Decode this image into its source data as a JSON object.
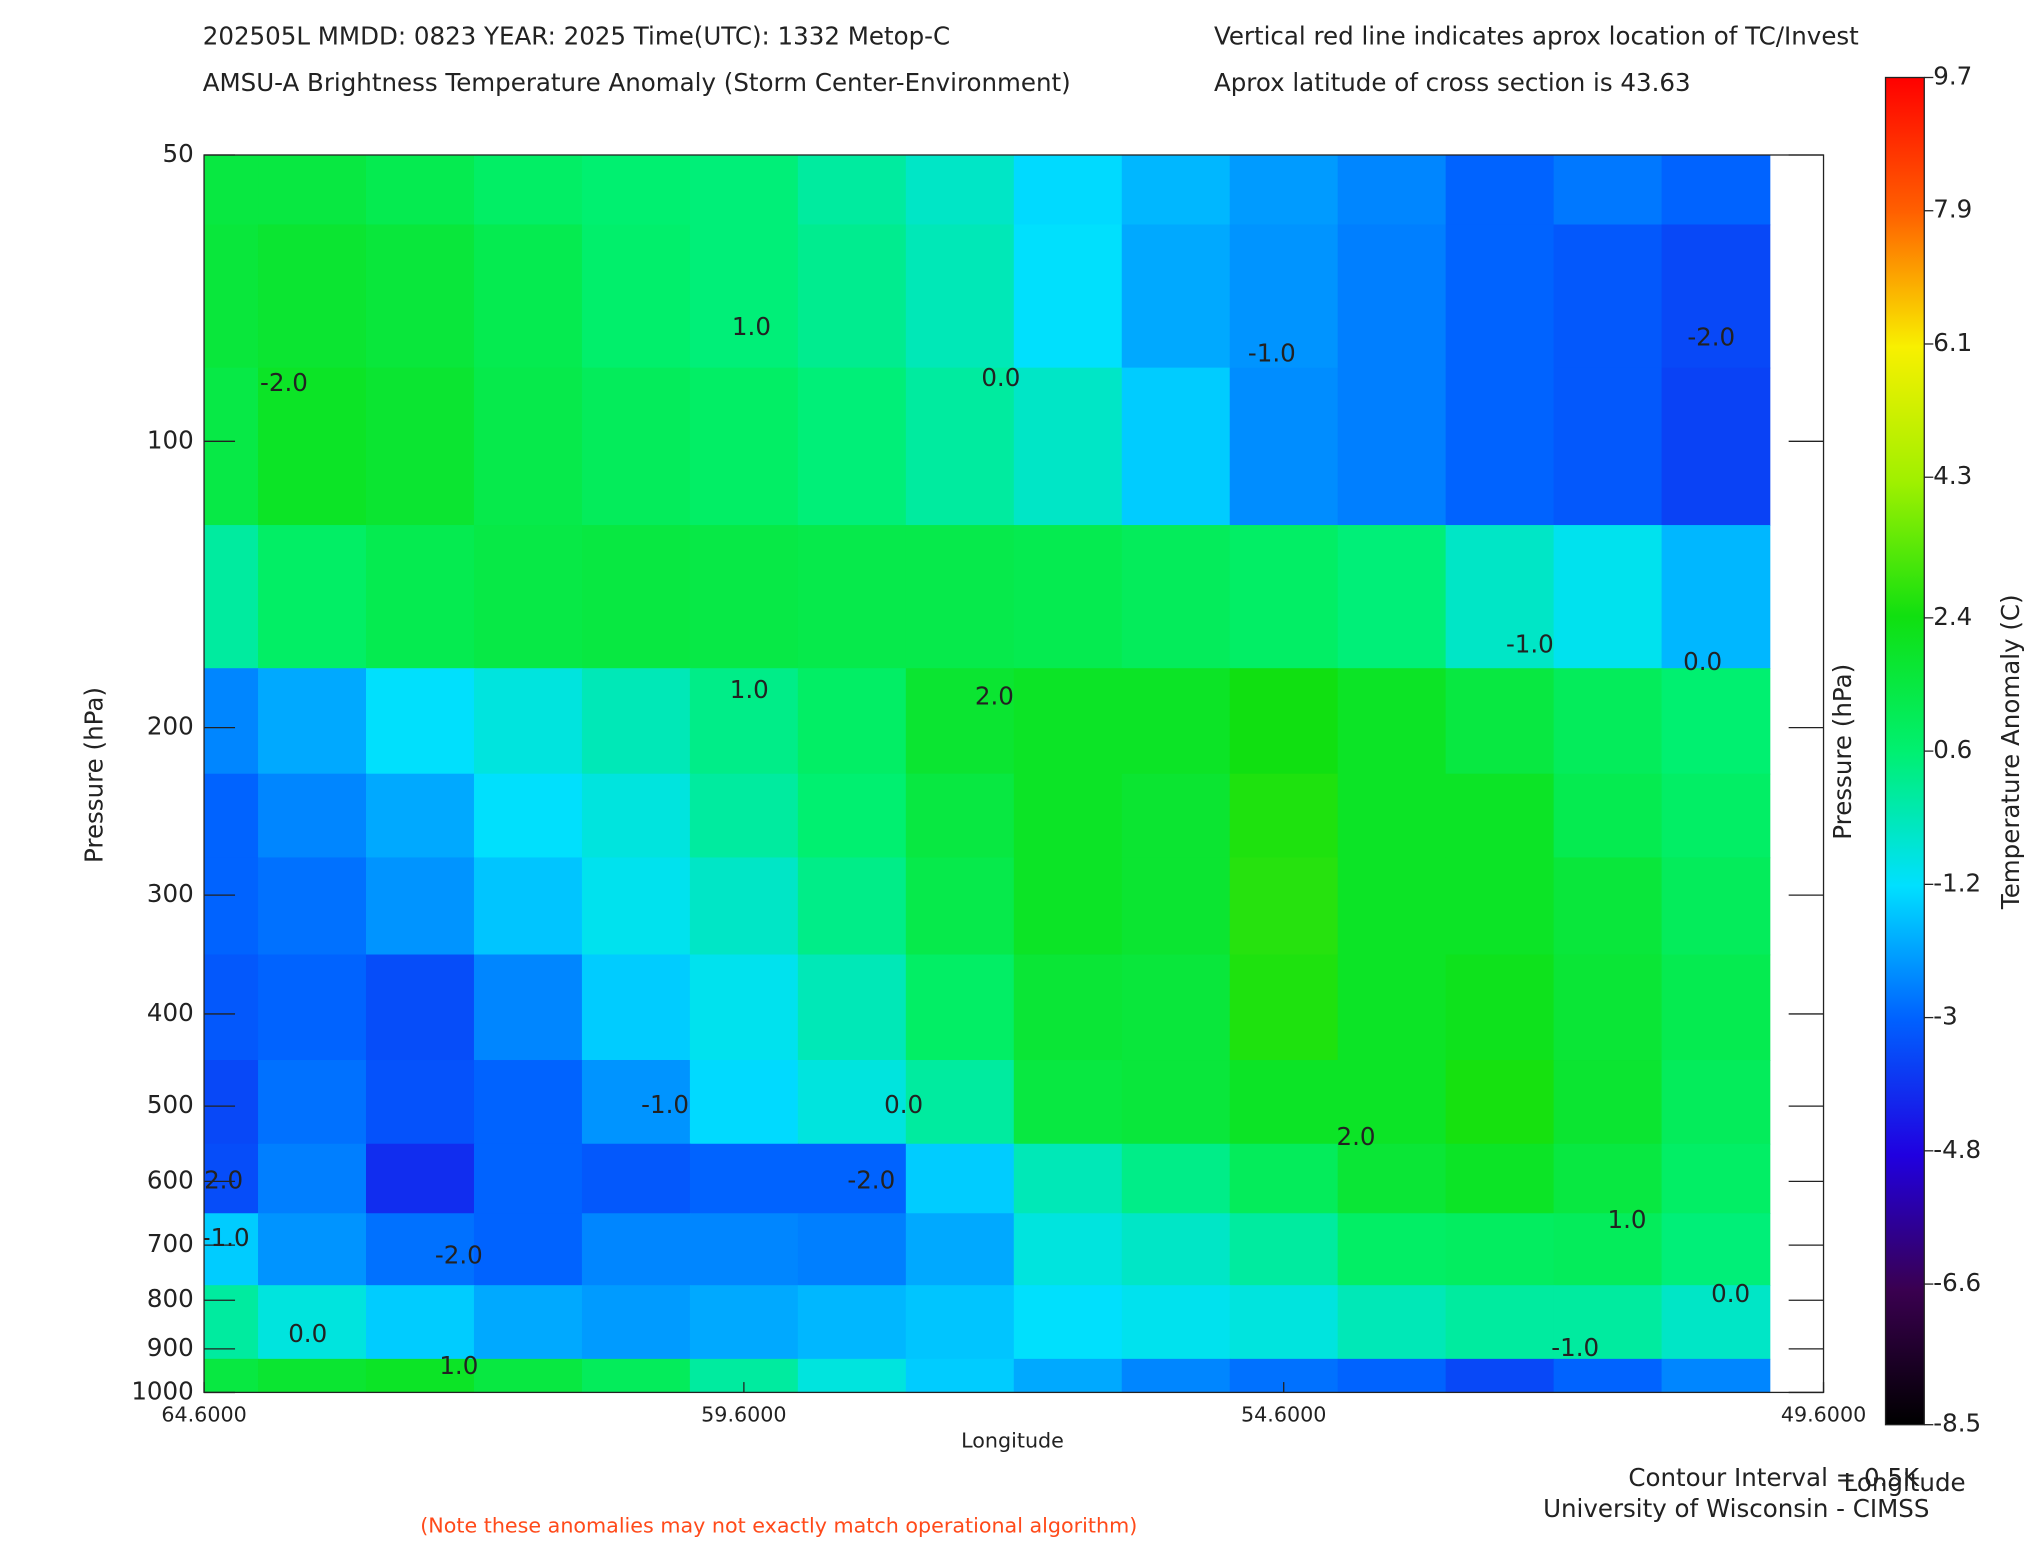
{
  "chart_data": {
    "type": "contour",
    "title": "202505L  MMDD: 0823 YEAR: 2025 Time(UTC): 1332 Metop-C",
    "subtitle": "AMSU-A Brightness Temperature Anomaly (Storm Center-Environment)",
    "note_right_1": "Vertical red line indicates aprox location of TC/Invest",
    "note_right_2": "Aprox latitude of cross section is 43.63",
    "xlabel": "Longitude",
    "ylabel": "Pressure (hPa)",
    "y2label": "Pressure (hPa)",
    "colorbar_label": "Temperature Anomaly (C)",
    "contour_interval": "Contour Interval = 0.5K",
    "corner_label": "Longitude",
    "credit": "University of Wisconsin - CIMSS",
    "footnote": "(Note these anomalies may not exactly match operational algorithm)",
    "xlim": [
      64.6,
      49.6
    ],
    "xticks": [
      {
        "value": 64.6,
        "label": "64.6000"
      },
      {
        "value": 59.6,
        "label": "59.6000"
      },
      {
        "value": 54.6,
        "label": "54.6000"
      },
      {
        "value": 49.6,
        "label": "49.6000"
      }
    ],
    "ylim": [
      50,
      1000
    ],
    "yscale": "log",
    "yinverted": true,
    "yticks": [
      50,
      100,
      200,
      300,
      400,
      500,
      600,
      700,
      800,
      900,
      1000
    ],
    "x": [
      64.6,
      63.6,
      62.6,
      61.6,
      60.6,
      59.6,
      58.6,
      57.6,
      56.6,
      55.6,
      54.6,
      53.6,
      52.6,
      51.6,
      50.6
    ],
    "y": [
      50,
      70,
      100,
      150,
      200,
      250,
      300,
      400,
      500,
      600,
      700,
      850,
      1000
    ],
    "z": [
      [
        1.5,
        1.5,
        1.2,
        0.8,
        0.6,
        0.5,
        0.0,
        -0.5,
        -1.3,
        -1.8,
        -2.2,
        -2.5,
        -3.0,
        -2.7,
        -3.0
      ],
      [
        1.6,
        1.8,
        1.6,
        1.2,
        0.7,
        0.5,
        0.2,
        -0.3,
        -1.2,
        -2.0,
        -2.3,
        -2.6,
        -3.0,
        -3.2,
        -3.5
      ],
      [
        1.4,
        2.0,
        1.8,
        1.3,
        1.0,
        0.8,
        0.5,
        0.0,
        -0.5,
        -1.5,
        -2.4,
        -2.6,
        -3.0,
        -3.2,
        -3.6
      ],
      [
        0.0,
        0.8,
        1.2,
        1.4,
        1.5,
        1.4,
        1.3,
        1.3,
        1.2,
        1.0,
        0.8,
        0.5,
        -0.5,
        -1.0,
        -1.8
      ],
      [
        -2.5,
        -2.0,
        -1.2,
        -0.8,
        -0.3,
        0.3,
        0.8,
        1.8,
        2.0,
        2.0,
        2.4,
        2.0,
        1.5,
        1.0,
        0.6
      ],
      [
        -3.0,
        -2.5,
        -2.0,
        -1.2,
        -0.8,
        0.0,
        0.6,
        1.5,
        2.0,
        1.8,
        2.6,
        2.0,
        2.0,
        1.2,
        0.8
      ],
      [
        -3.0,
        -2.8,
        -2.3,
        -1.6,
        -1.0,
        -0.5,
        0.3,
        1.3,
        2.0,
        1.8,
        2.7,
        2.0,
        2.0,
        1.6,
        1.0
      ],
      [
        -3.2,
        -3.0,
        -3.4,
        -2.5,
        -1.5,
        -1.0,
        -0.3,
        0.8,
        1.7,
        1.6,
        2.6,
        2.0,
        2.2,
        1.7,
        1.2
      ],
      [
        -3.5,
        -2.8,
        -3.3,
        -3.0,
        -2.3,
        -1.3,
        -0.8,
        0.0,
        1.5,
        1.6,
        2.0,
        2.0,
        2.5,
        1.8,
        1.0
      ],
      [
        -3.4,
        -2.6,
        -4.0,
        -3.0,
        -3.2,
        -3.0,
        -3.0,
        -1.5,
        -0.3,
        0.3,
        1.0,
        1.7,
        2.0,
        1.5,
        0.8
      ],
      [
        -1.5,
        -2.3,
        -2.8,
        -3.0,
        -2.5,
        -2.5,
        -2.6,
        -2.0,
        -0.8,
        -0.5,
        0.0,
        0.8,
        0.9,
        1.0,
        0.5
      ],
      [
        0.0,
        -0.8,
        -1.5,
        -2.0,
        -2.2,
        -2.0,
        -1.8,
        -1.6,
        -1.2,
        -1.0,
        -0.8,
        -0.3,
        0.0,
        0.0,
        -0.5
      ],
      [
        1.5,
        1.8,
        2.0,
        1.5,
        1.0,
        0.0,
        -0.8,
        -1.5,
        -2.0,
        -2.5,
        -2.8,
        -3.0,
        -3.5,
        -3.0,
        -2.5
      ]
    ],
    "clim": [
      -8.5,
      9.7
    ],
    "cticks": [
      -8.5,
      -6.6,
      -4.8,
      -3.0,
      -1.2,
      0.6,
      2.4,
      4.3,
      6.1,
      7.9,
      9.7
    ],
    "colors": [
      "#000000",
      "#3a0050",
      "#2000e0",
      "#0060ff",
      "#00e0ff",
      "#00f070",
      "#10e010",
      "#a0f000",
      "#f8f000",
      "#ff6000",
      "#ff0000"
    ],
    "contour_labels": [
      {
        "x": 63.86,
        "y": 87,
        "label": "-2.0"
      },
      {
        "x": 59.53,
        "y": 76,
        "label": "1.0"
      },
      {
        "x": 57.22,
        "y": 86,
        "label": "0.0"
      },
      {
        "x": 54.71,
        "y": 81,
        "label": "-1.0"
      },
      {
        "x": 50.64,
        "y": 78,
        "label": "-2.0"
      },
      {
        "x": 59.55,
        "y": 183,
        "label": "1.0"
      },
      {
        "x": 57.28,
        "y": 186,
        "label": "2.0"
      },
      {
        "x": 52.32,
        "y": 164,
        "label": "-1.0"
      },
      {
        "x": 50.72,
        "y": 171,
        "label": "0.0"
      },
      {
        "x": 60.33,
        "y": 500,
        "label": "-1.0"
      },
      {
        "x": 58.12,
        "y": 500,
        "label": "0.0"
      },
      {
        "x": 53.93,
        "y": 540,
        "label": "2.0"
      },
      {
        "x": 58.42,
        "y": 600,
        "label": "-2.0"
      },
      {
        "x": 62.24,
        "y": 720,
        "label": "-2.0"
      },
      {
        "x": 51.42,
        "y": 660,
        "label": "1.0"
      },
      {
        "x": 50.46,
        "y": 790,
        "label": "0.0"
      },
      {
        "x": 63.64,
        "y": 870,
        "label": "0.0"
      },
      {
        "x": 62.24,
        "y": 940,
        "label": "1.0"
      },
      {
        "x": 51.9,
        "y": 900,
        "label": "-1.0"
      },
      {
        "x": 64.46,
        "y": 600,
        "label": "-2.0"
      },
      {
        "x": 64.4,
        "y": 690,
        "label": "-1.0"
      }
    ]
  }
}
